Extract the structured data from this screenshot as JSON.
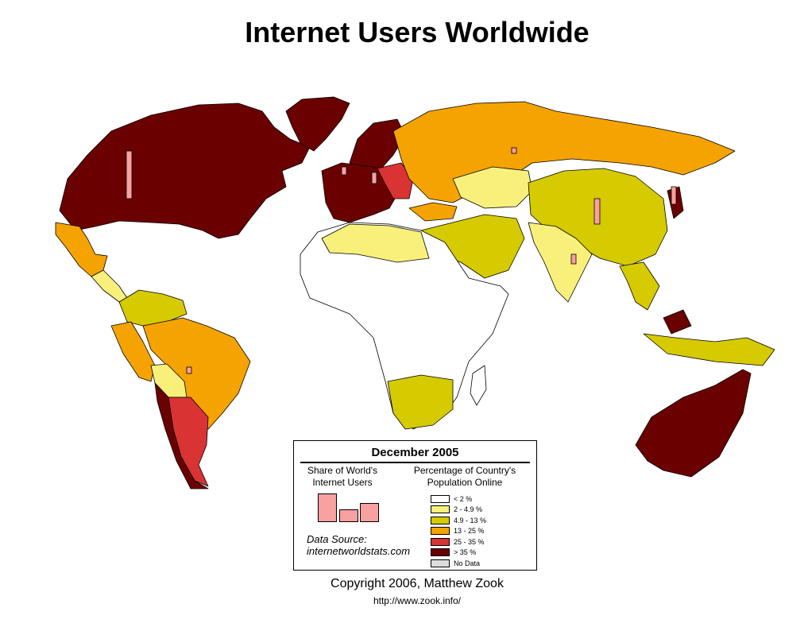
{
  "header": {
    "title": "Internet Users Worldwide"
  },
  "legend": {
    "heading": "December 2005",
    "share_title": "Share of World's Internet Users",
    "percentage_title": "Percentage of Country's Population Online",
    "classes": [
      {
        "label": "< 2 %",
        "color": "#ffffff"
      },
      {
        "label": "2 - 4.9 %",
        "color": "#f8f07a"
      },
      {
        "label": "4.9 - 13 %",
        "color": "#d6ca00"
      },
      {
        "label": "13 - 25 %",
        "color": "#f5a300"
      },
      {
        "label": "25 - 35 %",
        "color": "#d93333"
      },
      {
        "label": "> 35 %",
        "color": "#6b0000"
      },
      {
        "label": "No Data",
        "color": "#dddddd"
      }
    ],
    "data_source_label": "Data Source:",
    "data_source_url": "internetworldstats.com"
  },
  "footer": {
    "copyright": "Copyright 2006, Matthew Zook",
    "url": "http://www.zook.info/"
  }
}
